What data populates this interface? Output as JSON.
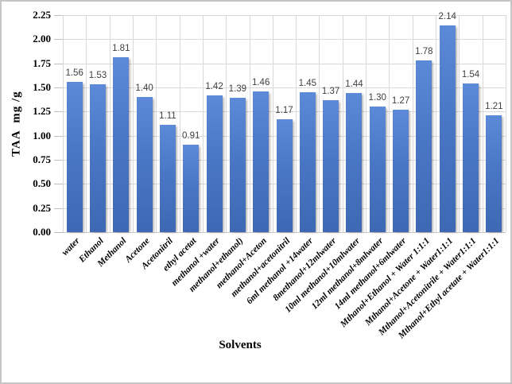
{
  "chart_data": {
    "type": "bar",
    "title": "",
    "xlabel": "Solvents",
    "ylabel": "TAA  mg /g",
    "categories": [
      "water",
      "Ethanol",
      "Methanol",
      "Acetone",
      "Acetonitril",
      "ethyl acetat",
      "methanol +water",
      "methanol+ethanol)",
      "methanol+Aceton",
      "methanol+acetonitril",
      "6ml methanol +14water",
      "8methanol+12mlwater",
      "10ml methanol+10mlwater",
      "12ml methanol+8mlwater",
      "14ml methanol+6mlwater",
      "Mthanol+Ethanol + Water 1:1:1",
      "Mthanol+Acetone + Water1:1:1",
      "Mthanol+Acetonitrile + Water1:1:1",
      "Mthanol+Ethyl acetate + Water1:1:1"
    ],
    "values": [
      1.56,
      1.53,
      1.81,
      1.4,
      1.11,
      0.91,
      1.42,
      1.39,
      1.46,
      1.17,
      1.45,
      1.37,
      1.44,
      1.3,
      1.27,
      1.78,
      2.14,
      1.54,
      1.21
    ],
    "data_labels": [
      "1.56",
      "1.53",
      "1.81",
      "1.40",
      "1.11",
      "0.91",
      "1.42",
      "1.39",
      "1.46",
      "1.17",
      "1.45",
      "1.37",
      "1.44",
      "1.30",
      "1.27",
      "1.78",
      "2.14",
      "1.54",
      "1.21"
    ],
    "ylim": [
      0,
      2.25
    ],
    "ytick_step": 0.25,
    "ytick_labels": [
      "0.00",
      "0.25",
      "0.50",
      "0.75",
      "1.00",
      "1.25",
      "1.50",
      "1.75",
      "2.00",
      "2.25"
    ],
    "grid": true,
    "vertical_category_gridlines": true,
    "legend": "none",
    "colors": {
      "bar_gradient_top": "#5D8AD8",
      "bar_gradient_bottom": "#3E68B3",
      "gridline": "#D9D9D9",
      "axis_line": "#C6C6C6",
      "tick_mark": "#BFBFBF",
      "data_label_text": "#404040",
      "axis_text": "#000000",
      "frame_border": "#C5C5C5"
    }
  }
}
